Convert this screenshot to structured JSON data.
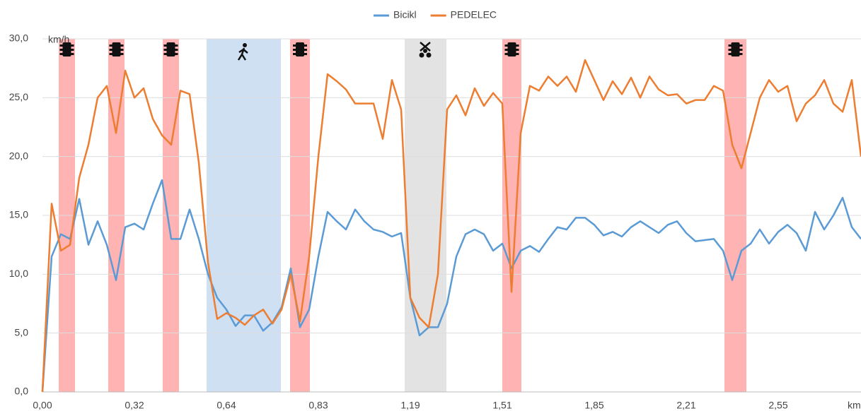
{
  "chart_data": {
    "type": "line",
    "y_unit": "km/h",
    "x_unit": "km",
    "categories": [
      "0,00",
      null,
      null,
      null,
      null,
      null,
      null,
      null,
      null,
      null,
      "0,32",
      null,
      null,
      null,
      null,
      null,
      null,
      null,
      null,
      null,
      "0,64",
      null,
      null,
      null,
      null,
      null,
      null,
      null,
      null,
      null,
      "0,83",
      null,
      null,
      null,
      null,
      null,
      null,
      null,
      null,
      null,
      "1,19",
      null,
      null,
      null,
      null,
      null,
      null,
      null,
      null,
      null,
      "1,51",
      null,
      null,
      null,
      null,
      null,
      null,
      null,
      null,
      null,
      "1,85",
      null,
      null,
      null,
      null,
      null,
      null,
      null,
      null,
      null,
      "2,21",
      null,
      null,
      null,
      null,
      null,
      null,
      null,
      null,
      null,
      "2,55",
      null,
      null,
      null,
      null,
      null,
      null,
      null,
      null,
      null
    ],
    "series": [
      {
        "name": "Bicikl",
        "color": "#5b9bd5",
        "values": [
          0,
          11.5,
          13.4,
          13,
          16.4,
          12.5,
          14.5,
          12.5,
          9.5,
          14,
          14.3,
          13.8,
          16,
          18,
          13,
          13,
          15.5,
          13,
          10,
          8,
          7,
          5.6,
          6.5,
          6.5,
          5.2,
          5.9,
          7.2,
          10.5,
          5.5,
          7,
          11.5,
          15.3,
          14.5,
          13.8,
          15.5,
          14.5,
          13.8,
          13.6,
          13.2,
          13.5,
          8,
          4.8,
          5.5,
          5.5,
          7.5,
          11.5,
          13.4,
          13.8,
          13.4,
          12,
          12.6,
          10.5,
          12,
          12.4,
          11.9,
          13,
          14,
          13.8,
          14.8,
          14.8,
          14.2,
          13.3,
          13.6,
          13.2,
          14,
          14.5,
          14,
          13.5,
          14.2,
          14.5,
          13.5,
          12.8,
          12.9,
          13,
          12,
          9.5,
          12,
          12.6,
          13.8,
          12.6,
          13.6,
          14.2,
          13.5,
          12,
          15.3,
          13.8,
          15,
          16.5,
          14,
          13
        ]
      },
      {
        "name": "PEDELEC",
        "color": "#ed7d31",
        "values": [
          0,
          16,
          12,
          12.5,
          18.2,
          21,
          25,
          26,
          22,
          27.3,
          25,
          25.8,
          23.2,
          21.8,
          21,
          25.6,
          25.3,
          19.5,
          11,
          6.2,
          6.7,
          6.3,
          5.7,
          6.5,
          7,
          5.8,
          7,
          10,
          6,
          11.5,
          20,
          27,
          26.4,
          25.7,
          24.5,
          24.5,
          24.5,
          21.5,
          26.5,
          24,
          8,
          6.3,
          5.5,
          10,
          24,
          25.2,
          23.5,
          25.8,
          24.3,
          25.4,
          24.5,
          8.5,
          22,
          26,
          25.6,
          26.8,
          26,
          26.8,
          25.5,
          28.2,
          26.5,
          24.8,
          26.4,
          25.3,
          26.7,
          25,
          26.8,
          25.7,
          25.2,
          25.3,
          24.5,
          24.8,
          24.8,
          26,
          25.6,
          21,
          19,
          22,
          25,
          26.5,
          25.5,
          26,
          23,
          24.5,
          25.2,
          26.5,
          24.5,
          23.8,
          26.5,
          20
        ]
      }
    ],
    "ylim": [
      0,
      30
    ],
    "yticks": [
      {
        "value": 0,
        "label": "0,0"
      },
      {
        "value": 5,
        "label": "5,0"
      },
      {
        "value": 10,
        "label": "10,0"
      },
      {
        "value": 15,
        "label": "15,0"
      },
      {
        "value": 20,
        "label": "20,0"
      },
      {
        "value": 25,
        "label": "25,0"
      },
      {
        "value": 30,
        "label": "30,0"
      }
    ],
    "grid": true,
    "legend": "top"
  }
}
